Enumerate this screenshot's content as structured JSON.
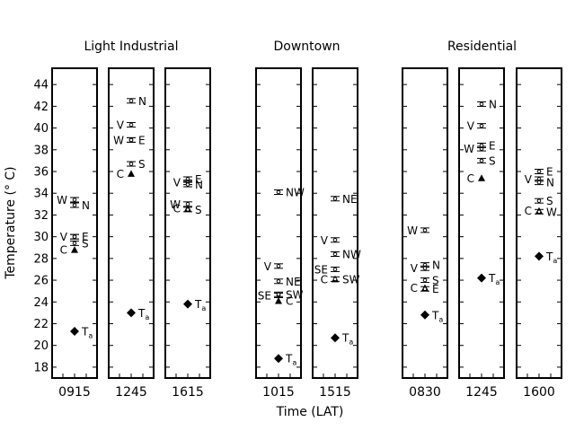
{
  "chart_data": {
    "type": "scatter",
    "ylabel": "Temperature (° C)",
    "xlabel": "Time (LAT)",
    "ylim": [
      17,
      45.5
    ],
    "yticks": [
      18,
      20,
      22,
      24,
      26,
      28,
      30,
      32,
      34,
      36,
      38,
      40,
      42,
      44
    ],
    "groups": [
      {
        "name": "Light Industrial",
        "panels": [
          {
            "time": "0915",
            "points": [
              {
                "label": "W",
                "side": "left",
                "y": 33.4,
                "marker": "errbar"
              },
              {
                "label": "N",
                "side": "right",
                "y": 32.9,
                "marker": "errbar"
              },
              {
                "label": "V",
                "side": "left",
                "y": 30.0,
                "marker": "errbar"
              },
              {
                "label": "E",
                "side": "right",
                "y": 30.0,
                "marker": "errbar"
              },
              {
                "label": "S",
                "side": "right",
                "y": 29.4,
                "marker": "errbar"
              },
              {
                "label": "C",
                "side": "left",
                "y": 28.8,
                "marker": "triangle"
              },
              {
                "label": "T",
                "sub": "a",
                "side": "right",
                "y": 21.3,
                "marker": "diamond"
              }
            ]
          },
          {
            "time": "1245",
            "points": [
              {
                "label": "N",
                "side": "right",
                "y": 42.5,
                "marker": "errbar"
              },
              {
                "label": "V",
                "side": "left",
                "y": 40.3,
                "marker": "errbar"
              },
              {
                "label": "W",
                "side": "left",
                "y": 38.9,
                "marker": "errbar"
              },
              {
                "label": "E",
                "side": "right",
                "y": 38.9,
                "marker": "errbar"
              },
              {
                "label": "S",
                "side": "right",
                "y": 36.7,
                "marker": "errbar"
              },
              {
                "label": "C",
                "side": "left",
                "y": 35.8,
                "marker": "triangle"
              },
              {
                "label": "T",
                "sub": "a",
                "side": "right",
                "y": 23.0,
                "marker": "diamond"
              }
            ]
          },
          {
            "time": "1615",
            "points": [
              {
                "label": "E",
                "side": "right",
                "y": 35.3,
                "marker": "errbar"
              },
              {
                "label": "V",
                "side": "left",
                "y": 35.0,
                "marker": "errbar"
              },
              {
                "label": "N",
                "side": "right",
                "y": 34.8,
                "marker": "errbar"
              },
              {
                "label": "W",
                "side": "left",
                "y": 33.0,
                "marker": "errbar"
              },
              {
                "label": "C",
                "side": "left",
                "y": 32.6,
                "marker": "triangle"
              },
              {
                "label": "S",
                "side": "right",
                "y": 32.5,
                "marker": "errbar"
              },
              {
                "label": "T",
                "sub": "a",
                "side": "right",
                "y": 23.8,
                "marker": "diamond"
              }
            ]
          }
        ]
      },
      {
        "name": "Downtown",
        "panels": [
          {
            "time": "1015",
            "points": [
              {
                "label": "NW",
                "side": "right",
                "y": 34.1,
                "marker": "errbar"
              },
              {
                "label": "V",
                "side": "left",
                "y": 27.3,
                "marker": "errbar"
              },
              {
                "label": "NE",
                "side": "right",
                "y": 25.9,
                "marker": "errbar"
              },
              {
                "label": "SE",
                "side": "left",
                "y": 24.6,
                "marker": "errbar"
              },
              {
                "label": "SW",
                "side": "right",
                "y": 24.7,
                "marker": "errbar"
              },
              {
                "label": "C",
                "side": "right",
                "y": 24.1,
                "marker": "triangle"
              },
              {
                "label": "T",
                "sub": "a",
                "side": "right",
                "y": 18.8,
                "marker": "diamond"
              }
            ]
          },
          {
            "time": "1515",
            "points": [
              {
                "label": "NE",
                "side": "right",
                "y": 33.5,
                "marker": "errbar"
              },
              {
                "label": "V",
                "side": "left",
                "y": 29.7,
                "marker": "errbar"
              },
              {
                "label": "NW",
                "side": "right",
                "y": 28.4,
                "marker": "errbar"
              },
              {
                "label": "SE",
                "side": "left",
                "y": 27.0,
                "marker": "errbar"
              },
              {
                "label": "C",
                "side": "left",
                "y": 26.1,
                "marker": "triangle"
              },
              {
                "label": "SW",
                "side": "right",
                "y": 26.1,
                "marker": "errbar"
              },
              {
                "label": "T",
                "sub": "a",
                "side": "right",
                "y": 20.7,
                "marker": "diamond"
              }
            ]
          }
        ]
      },
      {
        "name": "Residential",
        "panels": [
          {
            "time": "0830",
            "points": [
              {
                "label": "W",
                "side": "left",
                "y": 30.6,
                "marker": "errbar"
              },
              {
                "label": "N",
                "side": "right",
                "y": 27.4,
                "marker": "errbar"
              },
              {
                "label": "V",
                "side": "left",
                "y": 27.1,
                "marker": "errbar"
              },
              {
                "label": "S",
                "side": "right",
                "y": 26.0,
                "marker": "errbar"
              },
              {
                "label": "C",
                "side": "left",
                "y": 25.3,
                "marker": "triangle"
              },
              {
                "label": "E",
                "side": "right",
                "y": 25.2,
                "marker": "errbar"
              },
              {
                "label": "T",
                "sub": "a",
                "side": "right",
                "y": 22.8,
                "marker": "diamond"
              }
            ]
          },
          {
            "time": "1245",
            "points": [
              {
                "label": "N",
                "side": "right",
                "y": 42.2,
                "marker": "errbar"
              },
              {
                "label": "V",
                "side": "left",
                "y": 40.2,
                "marker": "errbar"
              },
              {
                "label": "W",
                "side": "left",
                "y": 38.1,
                "marker": "errbar"
              },
              {
                "label": "E",
                "side": "right",
                "y": 38.4,
                "marker": "errbar"
              },
              {
                "label": "S",
                "side": "right",
                "y": 37.0,
                "marker": "errbar"
              },
              {
                "label": "C",
                "side": "left",
                "y": 35.4,
                "marker": "triangle"
              },
              {
                "label": "T",
                "sub": "a",
                "side": "right",
                "y": 26.2,
                "marker": "diamond"
              }
            ]
          },
          {
            "time": "1600",
            "points": [
              {
                "label": "E",
                "side": "right",
                "y": 36.0,
                "marker": "errbar"
              },
              {
                "label": "V",
                "side": "left",
                "y": 35.3,
                "marker": "errbar"
              },
              {
                "label": "N",
                "side": "right",
                "y": 35.0,
                "marker": "errbar"
              },
              {
                "label": "S",
                "side": "right",
                "y": 33.3,
                "marker": "errbar"
              },
              {
                "label": "C",
                "side": "left",
                "y": 32.4,
                "marker": "triangle"
              },
              {
                "label": "W",
                "side": "right",
                "y": 32.3,
                "marker": "errbar"
              },
              {
                "label": "T",
                "sub": "a",
                "side": "right",
                "y": 28.2,
                "marker": "diamond"
              }
            ]
          }
        ]
      }
    ]
  }
}
